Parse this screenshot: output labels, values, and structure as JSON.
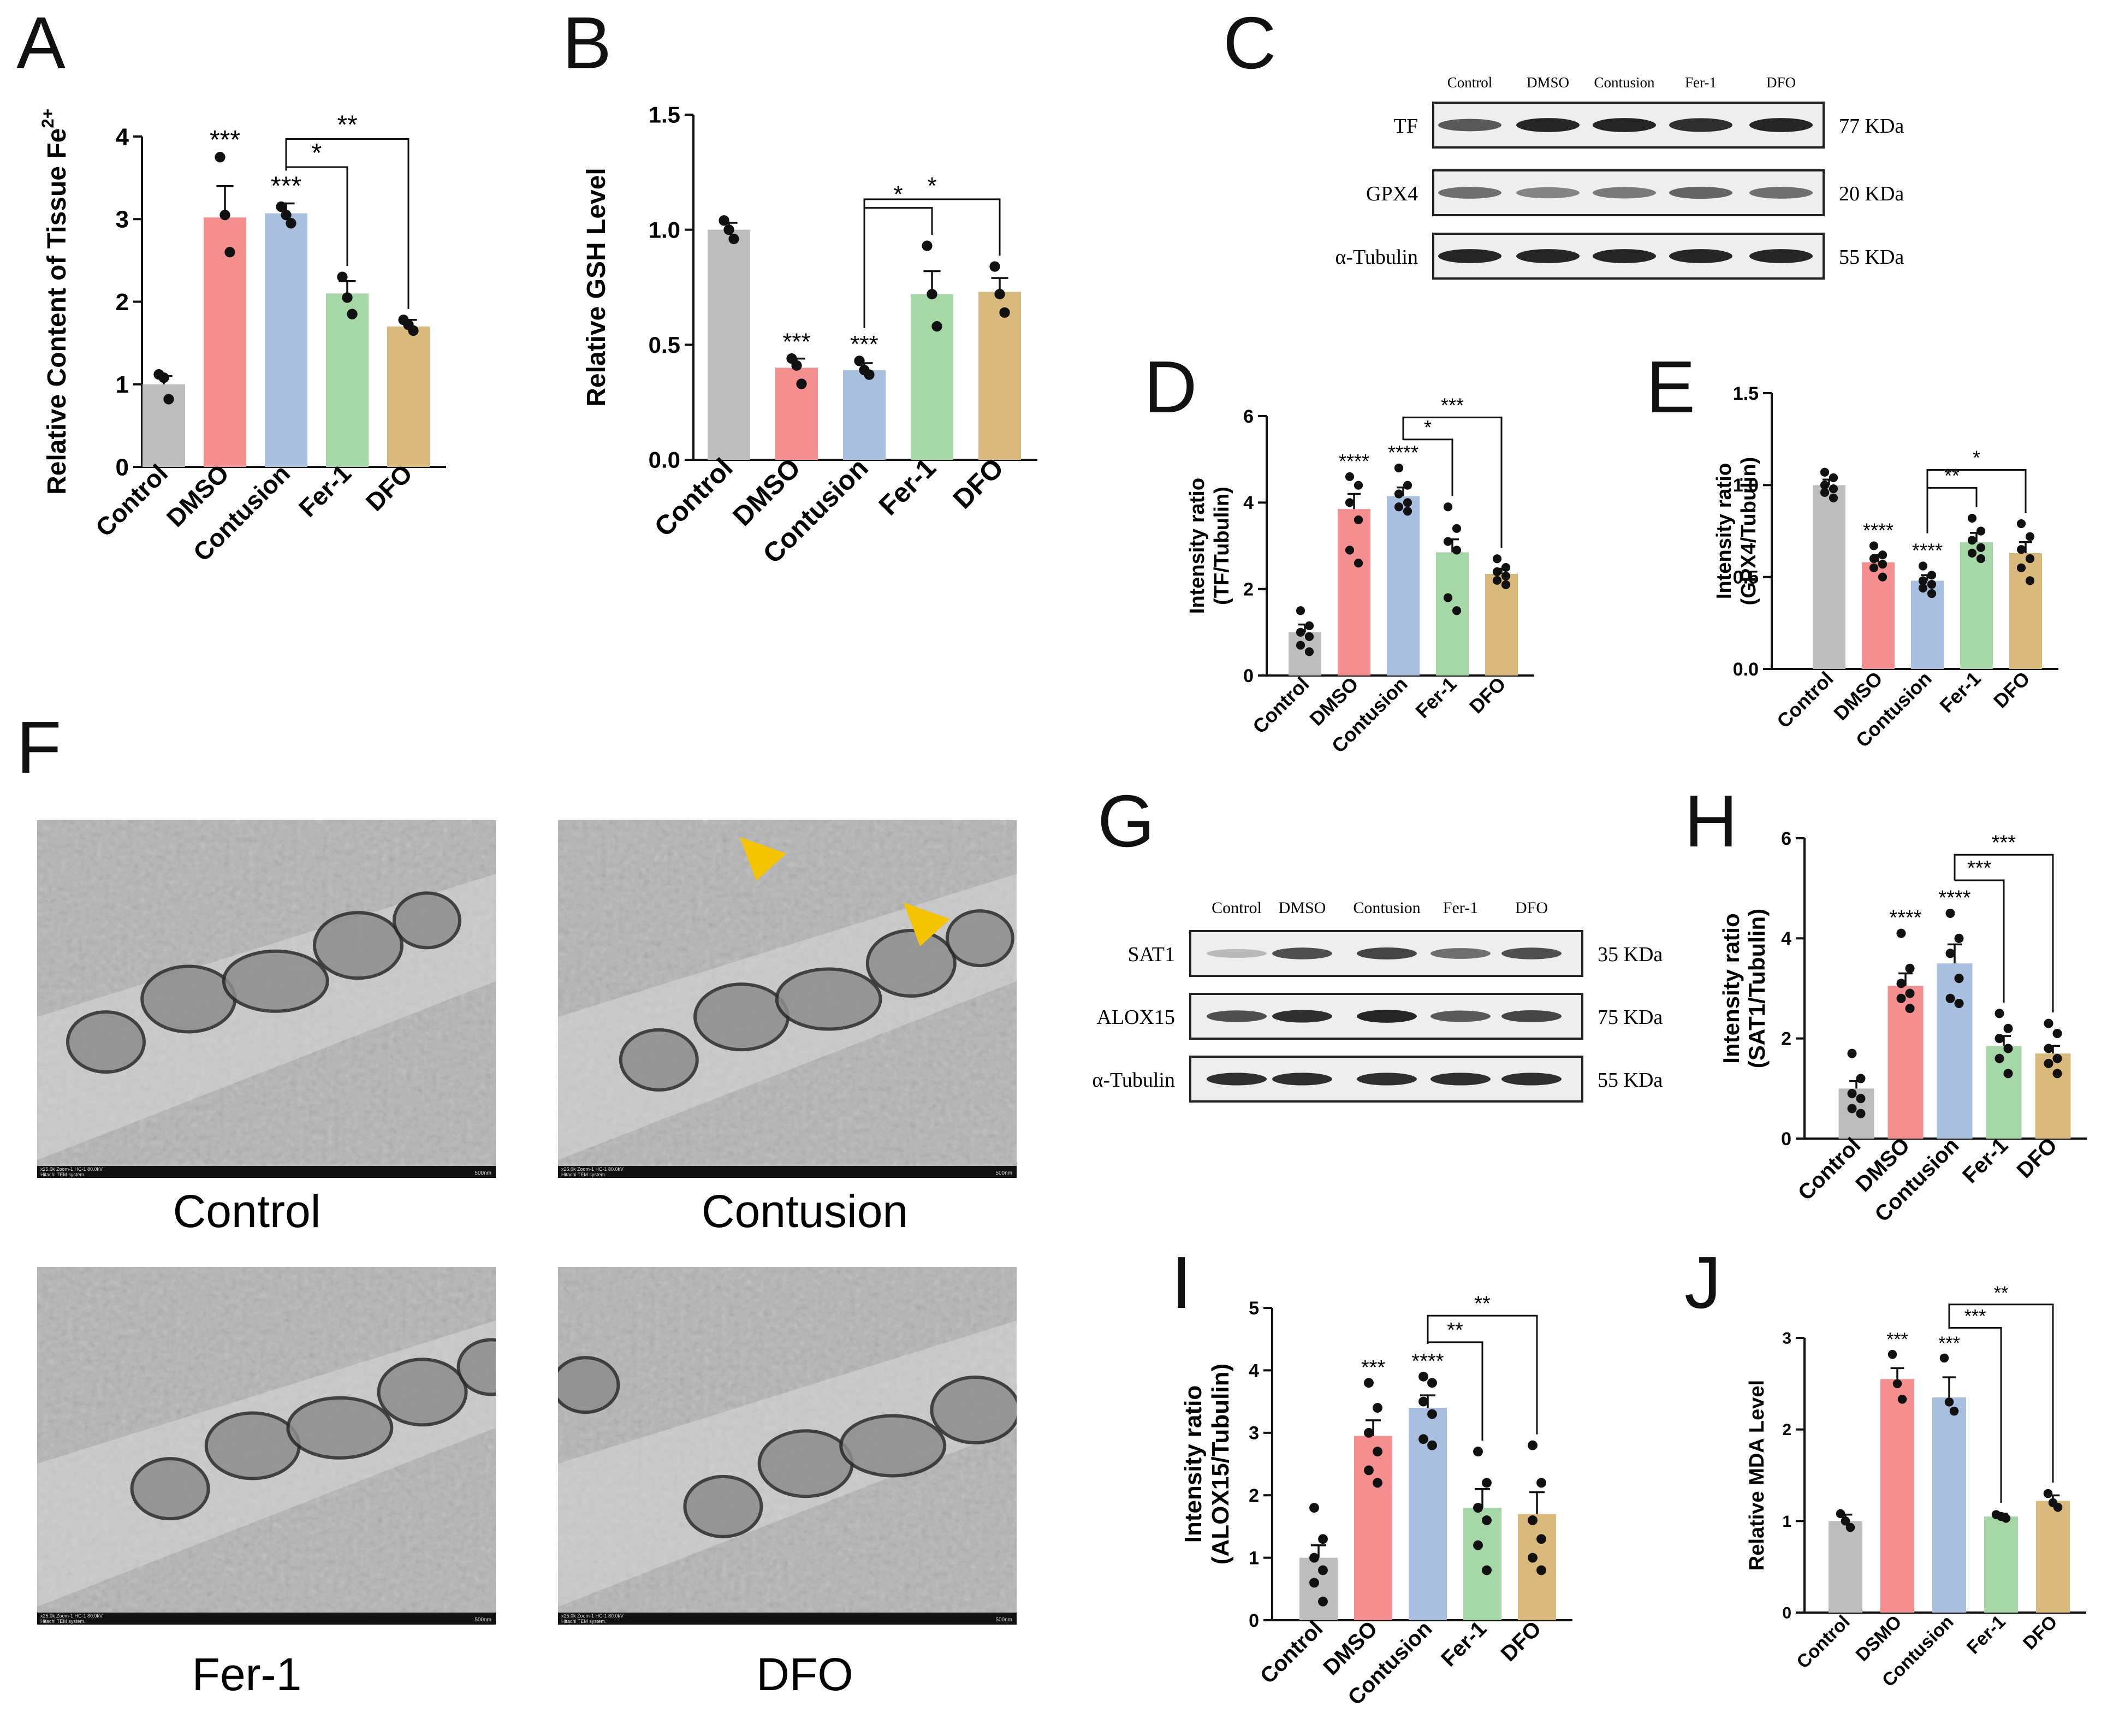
{
  "panels": {
    "A": {
      "letter": "A"
    },
    "B": {
      "letter": "B"
    },
    "C": {
      "letter": "C"
    },
    "D": {
      "letter": "D"
    },
    "E": {
      "letter": "E"
    },
    "F": {
      "letter": "F"
    },
    "G": {
      "letter": "G"
    },
    "H": {
      "letter": "H"
    },
    "I": {
      "letter": "I"
    },
    "J": {
      "letter": "J"
    }
  },
  "colors": {
    "control": "#bdbdbd",
    "dmso": "#f58e8e",
    "contusion": "#a9bfe0",
    "fer1": "#a6d7a6",
    "dfo": "#dab97c",
    "arrow": "#f5c400"
  },
  "chart_data": [
    {
      "id": "A",
      "type": "bar",
      "categories": [
        "Control",
        "DMSO",
        "Contusion",
        "Fer-1",
        "DFO"
      ],
      "values": [
        1.0,
        3.02,
        3.07,
        2.1,
        1.7
      ],
      "errors": [
        0.1,
        0.38,
        0.12,
        0.15,
        0.08
      ],
      "points": [
        [
          1.12,
          1.08,
          0.82
        ],
        [
          3.75,
          3.05,
          2.6
        ],
        [
          3.15,
          3.05,
          2.95
        ],
        [
          2.3,
          2.05,
          1.85
        ],
        [
          1.78,
          1.72,
          1.65
        ]
      ],
      "sig": [
        "",
        "***",
        "***",
        "",
        ""
      ],
      "brackets": [
        {
          "from": 2,
          "to": 3,
          "label": "*"
        },
        {
          "from": 2,
          "to": 4,
          "label": "**"
        }
      ],
      "ylabel": "Relative Content of Tissue Fe",
      "ylabel_sup": "2+",
      "ylim": [
        0,
        4
      ],
      "yticks": [
        "0",
        "1",
        "2",
        "3",
        "4"
      ]
    },
    {
      "id": "B",
      "type": "bar",
      "categories": [
        "Control",
        "DMSO",
        "Contusion",
        "Fer-1",
        "DFO"
      ],
      "values": [
        1.0,
        0.4,
        0.39,
        0.72,
        0.73
      ],
      "errors": [
        0.03,
        0.04,
        0.03,
        0.1,
        0.06
      ],
      "points": [
        [
          1.04,
          1.0,
          0.96
        ],
        [
          0.44,
          0.41,
          0.33
        ],
        [
          0.43,
          0.39,
          0.37
        ],
        [
          0.93,
          0.72,
          0.58
        ],
        [
          0.84,
          0.72,
          0.64
        ]
      ],
      "sig": [
        "",
        "***",
        "***",
        "",
        ""
      ],
      "brackets": [
        {
          "from": 2,
          "to": 3,
          "label": "*"
        },
        {
          "from": 2,
          "to": 4,
          "label": "*"
        }
      ],
      "ylabel": "Relative GSH Level",
      "ylim": [
        0,
        1.5
      ],
      "yticks": [
        "0.0",
        "0.5",
        "1.0",
        "1.5"
      ]
    },
    {
      "id": "D",
      "type": "bar",
      "categories": [
        "Control",
        "DMSO",
        "Contusion",
        "Fer-1",
        "DFO"
      ],
      "values": [
        1.0,
        3.85,
        4.15,
        2.85,
        2.35
      ],
      "errors": [
        0.18,
        0.35,
        0.2,
        0.3,
        0.12
      ],
      "points": [
        [
          1.5,
          1.15,
          1.0,
          0.9,
          0.7,
          0.55
        ],
        [
          4.6,
          4.4,
          4.0,
          3.6,
          2.9,
          2.6
        ],
        [
          4.8,
          4.4,
          4.2,
          4.0,
          3.9,
          3.8
        ],
        [
          3.9,
          3.4,
          3.1,
          2.9,
          1.8,
          1.5
        ],
        [
          2.7,
          2.5,
          2.4,
          2.3,
          2.2,
          2.1
        ]
      ],
      "sig": [
        "",
        "****",
        "****",
        "",
        ""
      ],
      "brackets": [
        {
          "from": 2,
          "to": 3,
          "label": "*"
        },
        {
          "from": 2,
          "to": 4,
          "label": "***"
        }
      ],
      "ylabel": "Intensity ratio",
      "ylabel2": "(TF/Tubulin)",
      "ylim": [
        0,
        6
      ],
      "yticks": [
        "0",
        "2",
        "4",
        "6"
      ]
    },
    {
      "id": "E",
      "type": "bar",
      "categories": [
        "Control",
        "DMSO",
        "Contusion",
        "Fer-1",
        "DFO"
      ],
      "values": [
        1.0,
        0.58,
        0.48,
        0.69,
        0.63
      ],
      "errors": [
        0.03,
        0.04,
        0.03,
        0.05,
        0.06
      ],
      "points": [
        [
          1.07,
          1.04,
          1.0,
          0.98,
          0.96,
          0.93
        ],
        [
          0.67,
          0.62,
          0.6,
          0.57,
          0.55,
          0.5
        ],
        [
          0.56,
          0.51,
          0.48,
          0.46,
          0.44,
          0.41
        ],
        [
          0.82,
          0.75,
          0.7,
          0.66,
          0.63,
          0.6
        ],
        [
          0.79,
          0.72,
          0.65,
          0.6,
          0.55,
          0.48
        ]
      ],
      "sig": [
        "",
        "****",
        "****",
        "",
        ""
      ],
      "brackets": [
        {
          "from": 2,
          "to": 3,
          "label": "**"
        },
        {
          "from": 2,
          "to": 4,
          "label": "*"
        }
      ],
      "ylabel": "Intensity ratio",
      "ylabel2": "(GPX4/Tubulin)",
      "ylim": [
        0,
        1.5
      ],
      "yticks": [
        "0.0",
        "0.5",
        "1.0",
        "1.5"
      ]
    },
    {
      "id": "H",
      "type": "bar",
      "categories": [
        "Control",
        "DMSO",
        "Contusion",
        "Fer-1",
        "DFO"
      ],
      "values": [
        1.0,
        3.05,
        3.5,
        1.85,
        1.7
      ],
      "errors": [
        0.15,
        0.25,
        0.38,
        0.2,
        0.15
      ],
      "points": [
        [
          1.7,
          1.2,
          0.9,
          0.8,
          0.6,
          0.5
        ],
        [
          4.1,
          3.4,
          3.1,
          2.9,
          2.8,
          2.6
        ],
        [
          4.5,
          4.0,
          3.7,
          3.2,
          2.8,
          2.7
        ],
        [
          2.5,
          2.2,
          2.0,
          1.8,
          1.6,
          1.3
        ],
        [
          2.3,
          2.1,
          1.8,
          1.6,
          1.5,
          1.3
        ]
      ],
      "sig": [
        "",
        "****",
        "****",
        "",
        ""
      ],
      "brackets": [
        {
          "from": 2,
          "to": 3,
          "label": "***"
        },
        {
          "from": 2,
          "to": 4,
          "label": "***"
        }
      ],
      "ylabel": "Intensity ratio",
      "ylabel2": "(SAT1/Tubulin)",
      "ylim": [
        0,
        6
      ],
      "yticks": [
        "0",
        "2",
        "4",
        "6"
      ]
    },
    {
      "id": "I",
      "type": "bar",
      "categories": [
        "Control",
        "DMSO",
        "Contusion",
        "Fer-1",
        "DFO"
      ],
      "values": [
        1.0,
        2.95,
        3.4,
        1.8,
        1.7
      ],
      "errors": [
        0.2,
        0.25,
        0.2,
        0.3,
        0.35
      ],
      "points": [
        [
          1.8,
          1.3,
          1.0,
          0.8,
          0.6,
          0.3
        ],
        [
          3.8,
          3.4,
          3.0,
          2.7,
          2.4,
          2.2
        ],
        [
          3.9,
          3.8,
          3.5,
          3.3,
          2.9,
          2.8
        ],
        [
          2.7,
          2.2,
          1.8,
          1.6,
          1.2,
          0.8
        ],
        [
          2.8,
          2.2,
          1.6,
          1.3,
          1.0,
          0.8
        ]
      ],
      "sig": [
        "",
        "***",
        "****",
        "",
        ""
      ],
      "brackets": [
        {
          "from": 2,
          "to": 3,
          "label": "**"
        },
        {
          "from": 2,
          "to": 4,
          "label": "**"
        }
      ],
      "ylabel": "Intensity ratio",
      "ylabel2": "(ALOX15/Tubulin)",
      "ylim": [
        0,
        5
      ],
      "yticks": [
        "0",
        "1",
        "2",
        "3",
        "4",
        "5"
      ]
    },
    {
      "id": "J",
      "type": "bar",
      "categories": [
        "Control",
        "DSMO",
        "Contusion",
        "Fer-1",
        "DFO"
      ],
      "values": [
        1.0,
        2.55,
        2.35,
        1.05,
        1.22
      ],
      "errors": [
        0.07,
        0.12,
        0.22,
        0.03,
        0.06
      ],
      "points": [
        [
          1.08,
          1.0,
          0.93
        ],
        [
          2.82,
          2.5,
          2.33
        ],
        [
          2.78,
          2.3,
          2.2
        ],
        [
          1.07,
          1.05,
          1.03
        ],
        [
          1.3,
          1.2,
          1.15
        ]
      ],
      "sig": [
        "",
        "***",
        "***",
        "",
        ""
      ],
      "brackets": [
        {
          "from": 2,
          "to": 3,
          "label": "***"
        },
        {
          "from": 2,
          "to": 4,
          "label": "**"
        }
      ],
      "ylabel": "Relative MDA Level",
      "ylim": [
        0,
        3
      ],
      "yticks": [
        "0",
        "1",
        "2",
        "3"
      ]
    }
  ],
  "blot_c": {
    "lanes": [
      "Control",
      "DMSO",
      "Contusion",
      "Fer-1",
      "DFO"
    ],
    "rows": [
      {
        "name": "TF",
        "kda": "77 KDa"
      },
      {
        "name": "GPX4",
        "kda": "20 KDa"
      },
      {
        "name": "α-Tubulin",
        "kda": "55 KDa"
      }
    ]
  },
  "blot_g": {
    "lanes": [
      "Control",
      "DMSO",
      "Contusion",
      "Fer-1",
      "DFO"
    ],
    "rows": [
      {
        "name": "SAT1",
        "kda": "35 KDa"
      },
      {
        "name": "ALOX15",
        "kda": "75 KDa"
      },
      {
        "name": "α-Tubulin",
        "kda": "55 KDa"
      }
    ]
  },
  "tem": [
    {
      "caption": "Control",
      "info": "x25.0k Zoom-1 HC-1 80.0kV",
      "info2": "Hitachi TEM system.",
      "scale": "500nm"
    },
    {
      "caption": "Contusion",
      "info": "x25.0k Zoom-1 HC-1 80.0kV",
      "info2": "Hitachi TEM system.",
      "scale": "500nm"
    },
    {
      "caption": "Fer-1",
      "info": "x25.0k Zoom-1 HC-1 80.0kV",
      "info2": "Hitachi TEM system.",
      "scale": "500nm"
    },
    {
      "caption": "DFO",
      "info": "x25.0k Zoom-1 HC-1 80.0kV",
      "info2": "Hitachi TEM system.",
      "scale": "500nm"
    }
  ]
}
